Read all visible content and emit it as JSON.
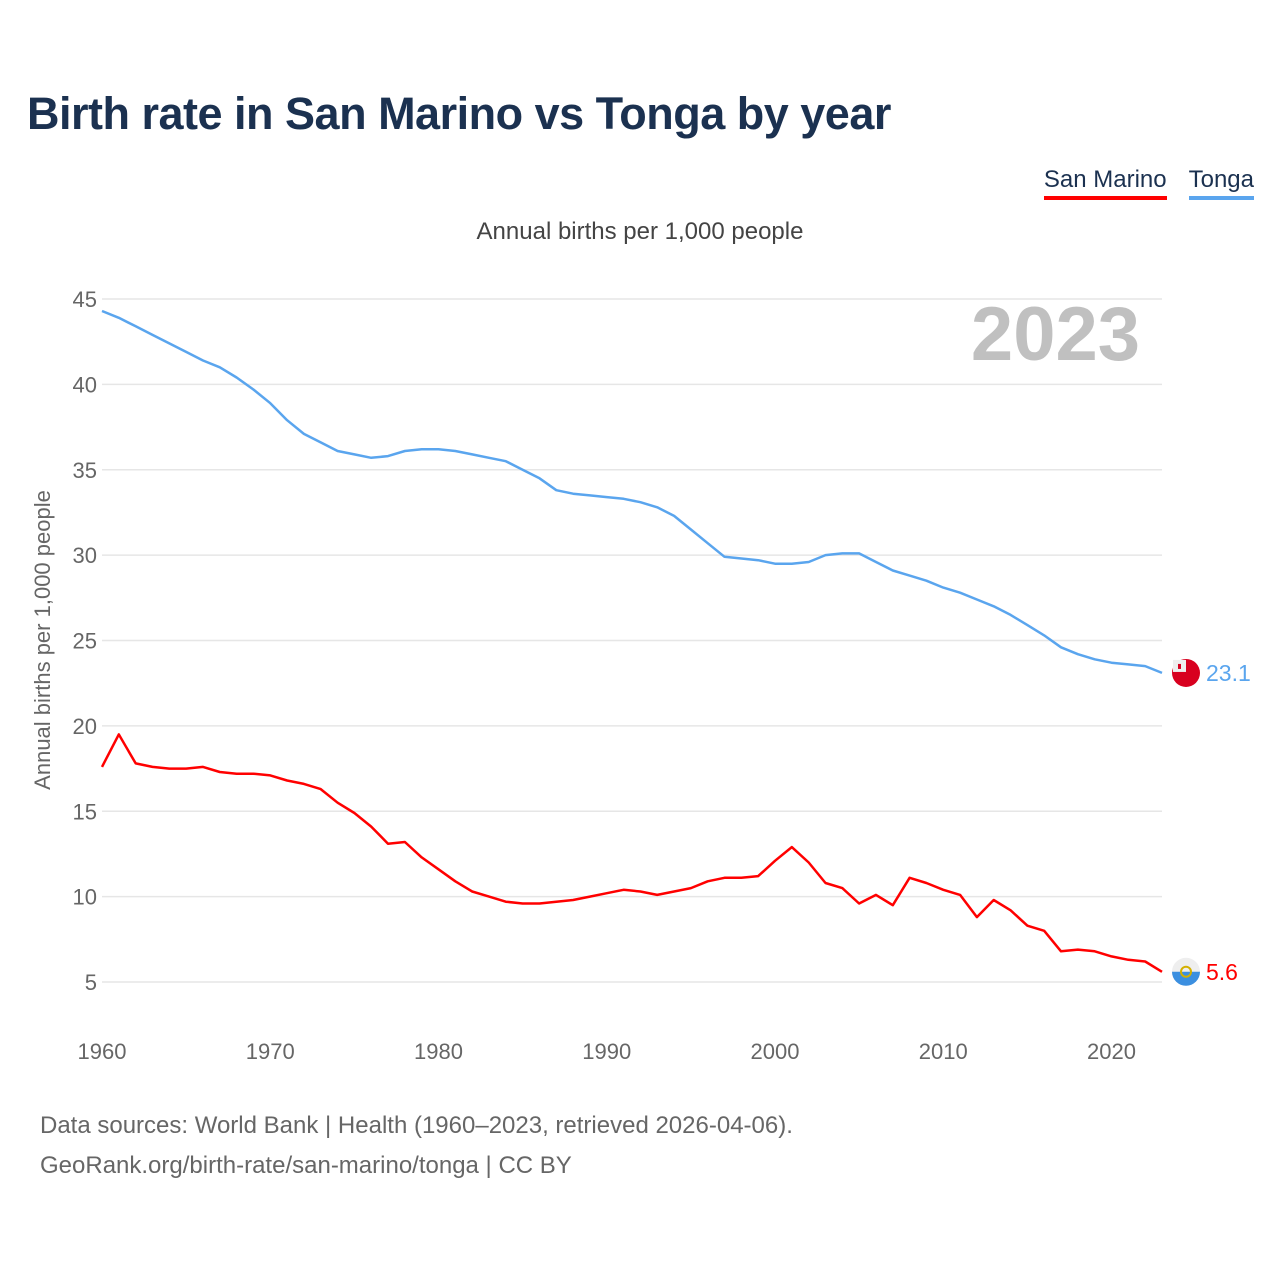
{
  "chart_data": {
    "type": "line",
    "title": "Birth rate in San Marino vs Tonga by year",
    "subtitle": "Annual births per 1,000 people",
    "ylabel": "Annual births per 1,000 people",
    "xlabel": "",
    "year_badge": "2023",
    "ylim": [
      3,
      45
    ],
    "xlim": [
      1960,
      2023
    ],
    "yticks": [
      5,
      10,
      15,
      20,
      25,
      30,
      35,
      40,
      45
    ],
    "xticks": [
      1960,
      1970,
      1980,
      1990,
      2000,
      2010,
      2020
    ],
    "grid": true,
    "legend_position": "top-right",
    "x": [
      1960,
      1961,
      1962,
      1963,
      1964,
      1965,
      1966,
      1967,
      1968,
      1969,
      1970,
      1971,
      1972,
      1973,
      1974,
      1975,
      1976,
      1977,
      1978,
      1979,
      1980,
      1981,
      1982,
      1983,
      1984,
      1985,
      1986,
      1987,
      1988,
      1989,
      1990,
      1991,
      1992,
      1993,
      1994,
      1995,
      1996,
      1997,
      1998,
      1999,
      2000,
      2001,
      2002,
      2003,
      2004,
      2005,
      2006,
      2007,
      2008,
      2009,
      2010,
      2011,
      2012,
      2013,
      2014,
      2015,
      2016,
      2017,
      2018,
      2019,
      2020,
      2021,
      2022,
      2023
    ],
    "series": [
      {
        "name": "San Marino",
        "color": "#ff0000",
        "end_label": "5.6",
        "values": [
          17.6,
          19.5,
          17.8,
          17.6,
          17.5,
          17.5,
          17.6,
          17.3,
          17.2,
          17.2,
          17.1,
          16.8,
          16.6,
          16.3,
          15.5,
          14.9,
          14.1,
          13.1,
          13.2,
          12.3,
          11.6,
          10.9,
          10.3,
          10.0,
          9.7,
          9.6,
          9.6,
          9.7,
          9.8,
          10.0,
          10.2,
          10.4,
          10.3,
          10.1,
          10.3,
          10.5,
          10.9,
          11.1,
          11.1,
          11.2,
          12.1,
          12.9,
          12.0,
          10.8,
          10.5,
          9.6,
          10.1,
          9.5,
          11.1,
          10.8,
          10.4,
          10.1,
          8.8,
          9.8,
          9.2,
          8.3,
          8.0,
          6.8,
          6.9,
          6.8,
          6.5,
          6.3,
          6.2,
          5.6
        ]
      },
      {
        "name": "Tonga",
        "color": "#5aa5ee",
        "end_label": "23.1",
        "values": [
          44.3,
          43.9,
          43.4,
          42.9,
          42.4,
          41.9,
          41.4,
          41.0,
          40.4,
          39.7,
          38.9,
          37.9,
          37.1,
          36.6,
          36.1,
          35.9,
          35.7,
          35.8,
          36.1,
          36.2,
          36.2,
          36.1,
          35.9,
          35.7,
          35.5,
          35.0,
          34.5,
          33.8,
          33.6,
          33.5,
          33.4,
          33.3,
          33.1,
          32.8,
          32.3,
          31.5,
          30.7,
          29.9,
          29.8,
          29.7,
          29.5,
          29.5,
          29.6,
          30.0,
          30.1,
          30.1,
          29.6,
          29.1,
          28.8,
          28.5,
          28.1,
          27.8,
          27.4,
          27.0,
          26.5,
          25.9,
          25.3,
          24.6,
          24.2,
          23.9,
          23.7,
          23.6,
          23.5,
          23.1
        ]
      }
    ],
    "source_line1": "Data sources: World Bank | Health (1960–2023, retrieved 2026-04-06).",
    "source_line2": "GeoRank.org/birth-rate/san-marino/tonga | CC BY"
  }
}
